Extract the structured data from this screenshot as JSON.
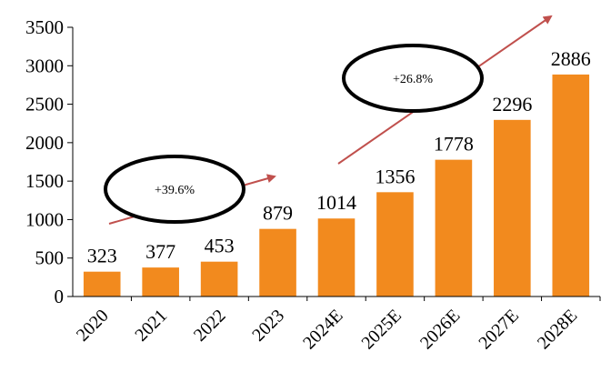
{
  "chart_data": {
    "type": "bar",
    "categories": [
      "2020",
      "2021",
      "2022",
      "2023",
      "2024E",
      "2025E",
      "2026E",
      "2027E",
      "2028E"
    ],
    "values": [
      323,
      377,
      453,
      879,
      1014,
      1356,
      1778,
      2296,
      2886
    ],
    "data_labels": [
      "323",
      "377",
      "453",
      "879",
      "1014",
      "1356",
      "1778",
      "2296",
      "2886"
    ],
    "ylim": [
      0,
      3500
    ],
    "yticks": [
      "0",
      "500",
      "1000",
      "1500",
      "2000",
      "2500",
      "3000",
      "3500"
    ],
    "grid": false,
    "legend": "none",
    "bar_color": "#F28A1E",
    "arrow_color": "#C0504D",
    "annotations": [
      {
        "text": "+39.6%",
        "from_category": "2020",
        "to_category": "2023"
      },
      {
        "text": "+26.8%",
        "from_category": "2023",
        "to_category": "2028E"
      }
    ]
  }
}
